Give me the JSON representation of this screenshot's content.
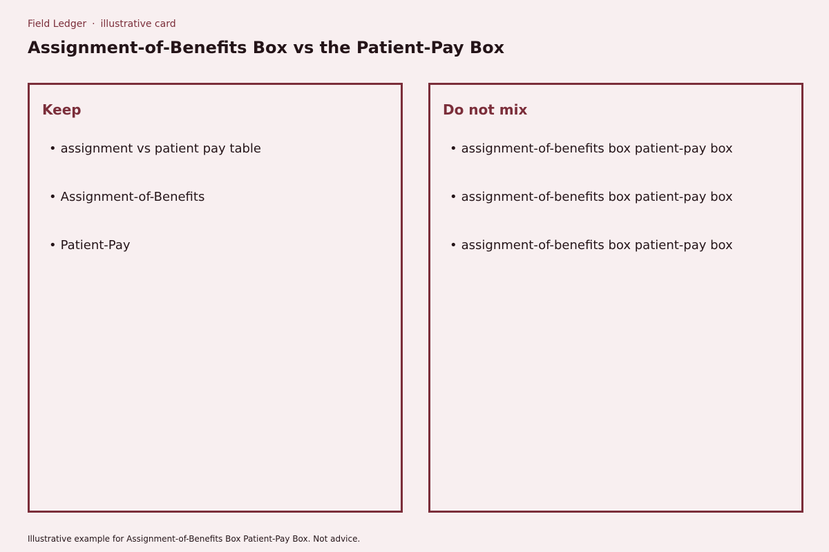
{
  "header": {
    "brand": "Field Ledger",
    "separator": "·",
    "kind": "illustrative card",
    "title": "Assignment-of-Benefits Box vs the Patient-Pay Box"
  },
  "panels": [
    {
      "heading": "Keep",
      "items": [
        "assignment vs patient pay table",
        "Assignment-of-Benefits",
        "Patient-Pay"
      ]
    },
    {
      "heading": "Do not mix",
      "items": [
        "assignment-of-benefits box patient-pay box",
        "assignment-of-benefits box patient-pay box",
        "assignment-of-benefits box patient-pay box"
      ]
    }
  ],
  "footer": {
    "note": "Illustrative example for Assignment-of-Benefits Box Patient-Pay Box. Not advice."
  },
  "colors": {
    "background": "#f8eff0",
    "accent": "#7b2e3a",
    "text": "#241418"
  }
}
